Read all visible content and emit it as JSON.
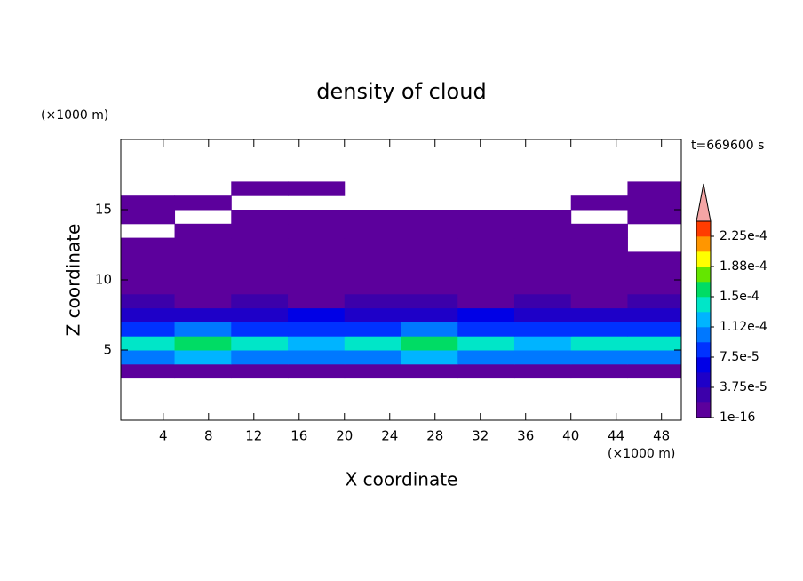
{
  "chart_data": {
    "type": "contour",
    "title": "density of cloud",
    "x_label": "X coordinate",
    "y_label": "Z coordinate",
    "x_unit": "(×1000 m)",
    "y_unit": "(×1000 m)",
    "annotation": "t=669600 s",
    "xlim": [
      0.25,
      49.75
    ],
    "ylim": [
      0,
      20
    ],
    "xticks": [
      4,
      8,
      12,
      16,
      20,
      24,
      28,
      32,
      36,
      40,
      44,
      48
    ],
    "yticks": [
      5,
      10,
      15
    ],
    "x": [
      2.5,
      7.5,
      12.5,
      17.5,
      22.5,
      27.5,
      32.5,
      37.5,
      42.5,
      47.5
    ],
    "y": [
      0.5,
      1.5,
      2.5,
      3.5,
      4.5,
      5.5,
      6.5,
      7.5,
      8.5,
      9.5,
      10.5,
      11.5,
      12.5,
      13.5,
      14.5,
      15.5,
      16.5,
      17.5,
      18.5,
      19.5
    ],
    "values": [
      [
        null,
        null,
        null,
        null,
        null,
        null,
        null,
        null,
        null,
        null
      ],
      [
        null,
        null,
        null,
        null,
        null,
        null,
        null,
        null,
        null,
        null
      ],
      [
        null,
        null,
        null,
        null,
        null,
        null,
        null,
        null,
        null,
        null
      ],
      [
        2e-06,
        2e-06,
        2e-06,
        2e-06,
        2e-06,
        2e-06,
        2e-06,
        2e-06,
        2e-06,
        2e-06
      ],
      [
        9.5e-05,
        0.00012,
        0.000105,
        0.00011,
        9.8e-05,
        0.000115,
        0.0001,
        0.000108,
        9.6e-05,
        0.000102
      ],
      [
        0.000135,
        0.000155,
        0.000142,
        0.00013,
        0.000138,
        0.000162,
        0.00014,
        0.000128,
        0.000145,
        0.000133
      ],
      [
        8.2e-05,
        9.6e-05,
        7.8e-05,
        8.8e-05,
        7.6e-05,
        9.9e-05,
        8.4e-05,
        7.9e-05,
        9.1e-05,
        8.6e-05
      ],
      [
        4.8e-05,
        5.2e-05,
        4.1e-05,
        5.8e-05,
        4.4e-05,
        3.9e-05,
        6.1e-05,
        4.6e-05,
        5.5e-05,
        4.9e-05
      ],
      [
        2.1e-05,
        1.6e-05,
        2.4e-05,
        1.4e-05,
        1.9e-05,
        2.2e-05,
        1.7e-05,
        2.6e-05,
        1.5e-05,
        2e-05
      ],
      [
        8e-06,
        1.2e-05,
        6e-06,
        1.1e-05,
        9e-06,
        7e-06,
        1.3e-05,
        5e-06,
        1e-05,
        8e-06
      ],
      [
        3e-06,
        3e-06,
        3e-06,
        3e-06,
        3e-06,
        3e-06,
        3e-06,
        3e-06,
        3e-06,
        3e-06
      ],
      [
        3e-06,
        3e-06,
        3e-06,
        3e-06,
        3e-06,
        3e-06,
        3e-06,
        3e-06,
        3e-06,
        3e-06
      ],
      [
        3e-06,
        3e-06,
        3e-06,
        3e-06,
        3e-06,
        3e-06,
        3e-06,
        3e-06,
        3e-06,
        null
      ],
      [
        null,
        3e-06,
        3e-06,
        3e-06,
        3e-06,
        3e-06,
        3e-06,
        3e-06,
        3e-06,
        null
      ],
      [
        3e-06,
        null,
        3e-06,
        3e-06,
        3e-06,
        3e-06,
        3e-06,
        3e-06,
        null,
        3e-06
      ],
      [
        3e-06,
        3e-06,
        null,
        null,
        null,
        null,
        null,
        null,
        3e-06,
        3e-06
      ],
      [
        null,
        null,
        3e-06,
        3e-06,
        null,
        null,
        null,
        null,
        null,
        3e-06
      ],
      [
        null,
        null,
        null,
        null,
        null,
        null,
        null,
        null,
        null,
        null
      ],
      [
        null,
        null,
        null,
        null,
        null,
        null,
        null,
        null,
        null,
        null
      ],
      [
        null,
        null,
        null,
        null,
        null,
        null,
        null,
        null,
        null,
        null
      ]
    ],
    "levels": [
      1e-16,
      1.875e-05,
      3.75e-05,
      5.625e-05,
      7.5e-05,
      9.375e-05,
      0.0001125,
      0.00013125,
      0.00015,
      0.00016875,
      0.0001875,
      0.00020625,
      0.000225,
      0.00024375
    ],
    "colors": [
      "#5c009c",
      "#3c00aa",
      "#1e00c8",
      "#0000e6",
      "#0032ff",
      "#0078ff",
      "#00b4ff",
      "#00e6c8",
      "#00dc64",
      "#64e600",
      "#ffff00",
      "#ff9600",
      "#ff3c00"
    ],
    "extend_color": "#f5a5a5",
    "colorbar_ticks": [
      1e-16,
      {
        "value": 3.75e-05,
        "label": "3.75e-5"
      },
      {
        "value": 7.5e-05,
        "label": "7.5e-5"
      },
      {
        "value": 0.0001125,
        "label": "1.12e-4"
      },
      {
        "value": 0.00015,
        "label": "1.5e-4"
      },
      {
        "value": 0.0001875,
        "label": "1.88e-4"
      },
      {
        "value": 0.000225,
        "label": "2.25e-4"
      }
    ]
  }
}
